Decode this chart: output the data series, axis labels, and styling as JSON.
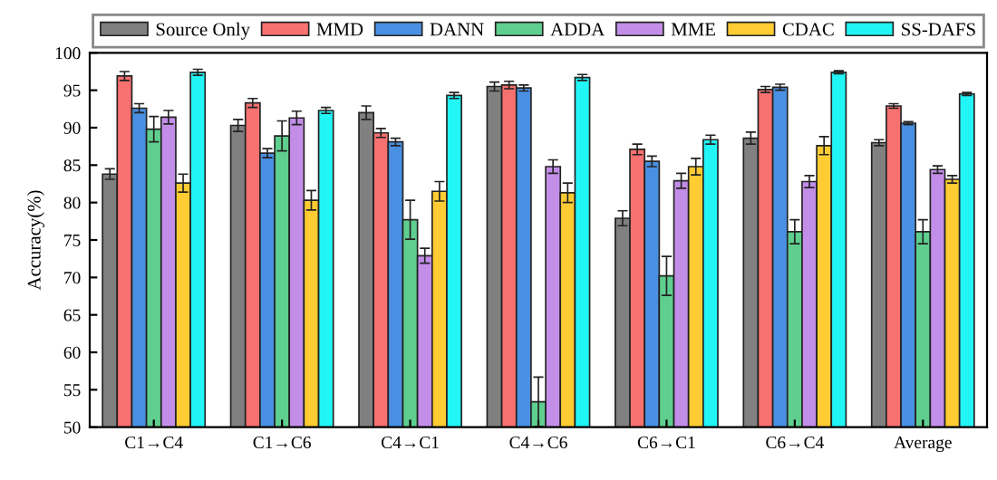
{
  "chart_data": {
    "type": "bar",
    "ylabel": "Accuracy(%)",
    "categories": [
      "C1→C4",
      "C1→C6",
      "C4→C1",
      "C4→C6",
      "C6→C1",
      "C6→C4",
      "Average"
    ],
    "ylim": [
      50,
      100
    ],
    "yticks": [
      50,
      55,
      60,
      65,
      70,
      75,
      80,
      85,
      90,
      95,
      100
    ],
    "grid": false,
    "legend": "top",
    "series": [
      {
        "name": "Source Only",
        "color": "#808080",
        "values": [
          83.8,
          90.3,
          92.0,
          95.5,
          77.9,
          88.6,
          88.0
        ],
        "errors": [
          0.7,
          0.8,
          0.9,
          0.6,
          1.0,
          0.8,
          0.4
        ]
      },
      {
        "name": "MMD",
        "color": "#f87171",
        "values": [
          96.9,
          93.3,
          89.3,
          95.7,
          87.1,
          95.1,
          92.9
        ],
        "errors": [
          0.6,
          0.6,
          0.6,
          0.5,
          0.7,
          0.4,
          0.3
        ]
      },
      {
        "name": "DANN",
        "color": "#4a90e2",
        "values": [
          92.6,
          86.6,
          88.1,
          95.3,
          85.5,
          95.4,
          90.6
        ],
        "errors": [
          0.6,
          0.6,
          0.5,
          0.4,
          0.7,
          0.4,
          0.2
        ]
      },
      {
        "name": "ADDA",
        "color": "#5fcf8f",
        "values": [
          89.8,
          88.9,
          77.7,
          53.4,
          70.2,
          76.1,
          76.1
        ],
        "errors": [
          1.7,
          2.0,
          2.6,
          3.3,
          2.6,
          1.6,
          1.6
        ]
      },
      {
        "name": "MME",
        "color": "#c38ee8",
        "values": [
          91.4,
          91.3,
          72.9,
          84.8,
          82.9,
          82.8,
          84.4
        ],
        "errors": [
          0.9,
          0.9,
          1.0,
          0.9,
          1.0,
          0.8,
          0.5
        ]
      },
      {
        "name": "CDAC",
        "color": "#ffcc33",
        "values": [
          82.6,
          80.3,
          81.5,
          81.3,
          84.8,
          87.6,
          83.1
        ],
        "errors": [
          1.2,
          1.3,
          1.3,
          1.3,
          1.1,
          1.2,
          0.5
        ]
      },
      {
        "name": "SS-DAFS",
        "color": "#22f5f5",
        "values": [
          97.4,
          92.3,
          94.3,
          96.7,
          88.4,
          97.4,
          94.5
        ],
        "errors": [
          0.4,
          0.4,
          0.4,
          0.4,
          0.6,
          0.2,
          0.2
        ]
      }
    ]
  }
}
